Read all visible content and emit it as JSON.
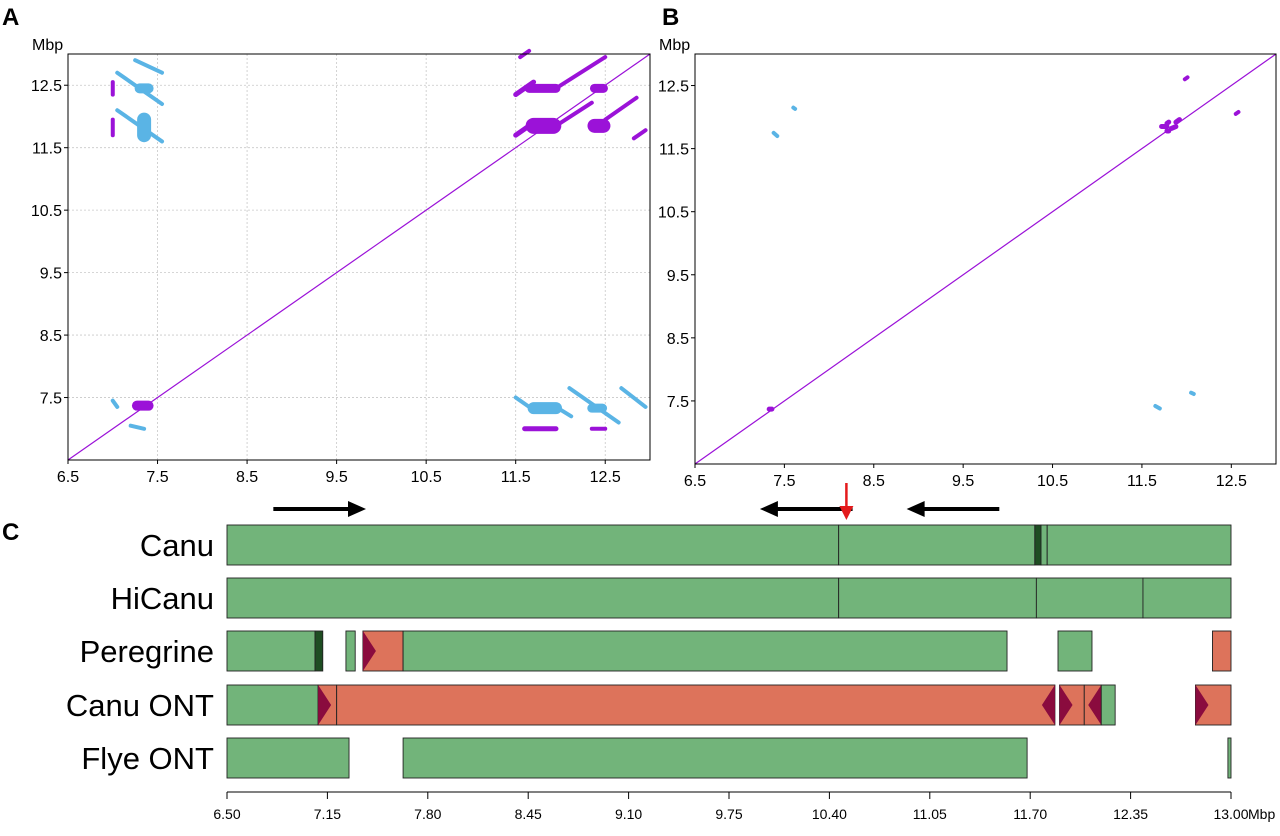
{
  "chart_data": [
    {
      "type": "scatter",
      "panel": "A",
      "ylabel": "Mbp",
      "xlim": [
        6.5,
        13.0
      ],
      "ylim": [
        6.5,
        13.0
      ],
      "xticks": [
        "6.5",
        "7.5",
        "8.5",
        "9.5",
        "10.5",
        "11.5",
        "12.5"
      ],
      "yticks": [
        "7.5",
        "8.5",
        "9.5",
        "10.5",
        "11.5",
        "12.5"
      ],
      "grid": true,
      "colors": {
        "forward": "#9b12d8",
        "reverse": "#5ab4e5"
      },
      "segments": [
        {
          "dir": "forward",
          "x1": 6.5,
          "y1": 6.5,
          "x2": 13.0,
          "y2": 13.0,
          "w": 1.2
        },
        {
          "dir": "forward",
          "x1": 7.27,
          "y1": 7.37,
          "x2": 7.4,
          "y2": 7.37,
          "w": 10
        },
        {
          "dir": "forward",
          "x1": 11.7,
          "y1": 11.85,
          "x2": 11.92,
          "y2": 11.85,
          "w": 16
        },
        {
          "dir": "forward",
          "x1": 11.65,
          "y1": 12.45,
          "x2": 11.95,
          "y2": 12.45,
          "w": 9
        },
        {
          "dir": "forward",
          "x1": 12.38,
          "y1": 12.45,
          "x2": 12.48,
          "y2": 12.45,
          "w": 9
        },
        {
          "dir": "forward",
          "x1": 12.38,
          "y1": 11.85,
          "x2": 12.48,
          "y2": 11.85,
          "w": 14
        },
        {
          "dir": "forward",
          "x1": 11.5,
          "y1": 12.35,
          "x2": 11.7,
          "y2": 12.55,
          "w": 5
        },
        {
          "dir": "forward",
          "x1": 11.95,
          "y1": 12.45,
          "x2": 12.5,
          "y2": 12.95,
          "w": 4
        },
        {
          "dir": "forward",
          "x1": 11.5,
          "y1": 11.7,
          "x2": 11.65,
          "y2": 11.85,
          "w": 5
        },
        {
          "dir": "forward",
          "x1": 11.95,
          "y1": 11.85,
          "x2": 12.35,
          "y2": 12.22,
          "w": 4
        },
        {
          "dir": "forward",
          "x1": 12.5,
          "y1": 11.95,
          "x2": 12.85,
          "y2": 12.3,
          "w": 4
        },
        {
          "dir": "forward",
          "x1": 12.82,
          "y1": 11.65,
          "x2": 12.95,
          "y2": 11.78,
          "w": 4
        },
        {
          "dir": "forward",
          "x1": 11.55,
          "y1": 12.95,
          "x2": 11.65,
          "y2": 13.05,
          "w": 4
        },
        {
          "dir": "forward",
          "x1": 7.0,
          "y1": 12.35,
          "x2": 7.0,
          "y2": 12.55,
          "w": 4
        },
        {
          "dir": "forward",
          "x1": 7.0,
          "y1": 11.7,
          "x2": 7.0,
          "y2": 11.95,
          "w": 4
        },
        {
          "dir": "forward",
          "x1": 11.6,
          "y1": 7.0,
          "x2": 11.95,
          "y2": 7.0,
          "w": 5
        },
        {
          "dir": "forward",
          "x1": 12.35,
          "y1": 7.0,
          "x2": 12.5,
          "y2": 7.0,
          "w": 4
        },
        {
          "dir": "reverse",
          "x1": 7.25,
          "y1": 12.9,
          "x2": 7.55,
          "y2": 12.7,
          "w": 4
        },
        {
          "dir": "reverse",
          "x1": 7.05,
          "y1": 12.7,
          "x2": 7.55,
          "y2": 12.2,
          "w": 4
        },
        {
          "dir": "reverse",
          "x1": 7.05,
          "y1": 12.1,
          "x2": 7.55,
          "y2": 11.6,
          "w": 4
        },
        {
          "dir": "reverse",
          "x1": 7.3,
          "y1": 12.45,
          "x2": 7.4,
          "y2": 12.45,
          "w": 10
        },
        {
          "dir": "reverse",
          "x1": 7.35,
          "y1": 11.7,
          "x2": 7.35,
          "y2": 11.95,
          "w": 14
        },
        {
          "dir": "reverse",
          "x1": 11.5,
          "y1": 7.5,
          "x2": 11.7,
          "y2": 7.3,
          "w": 4
        },
        {
          "dir": "reverse",
          "x1": 11.7,
          "y1": 7.33,
          "x2": 11.95,
          "y2": 7.33,
          "w": 12
        },
        {
          "dir": "reverse",
          "x1": 11.95,
          "y1": 7.35,
          "x2": 12.12,
          "y2": 7.2,
          "w": 4
        },
        {
          "dir": "reverse",
          "x1": 12.1,
          "y1": 7.65,
          "x2": 12.65,
          "y2": 7.1,
          "w": 4
        },
        {
          "dir": "reverse",
          "x1": 12.35,
          "y1": 7.33,
          "x2": 12.47,
          "y2": 7.33,
          "w": 9
        },
        {
          "dir": "reverse",
          "x1": 12.68,
          "y1": 7.65,
          "x2": 12.95,
          "y2": 7.35,
          "w": 4
        },
        {
          "dir": "reverse",
          "x1": 7.0,
          "y1": 7.45,
          "x2": 7.05,
          "y2": 7.35,
          "w": 4
        },
        {
          "dir": "reverse",
          "x1": 7.2,
          "y1": 7.05,
          "x2": 7.35,
          "y2": 7.0,
          "w": 4
        }
      ]
    },
    {
      "type": "scatter",
      "panel": "B",
      "ylabel": "Mbp",
      "xlim": [
        6.5,
        13.0
      ],
      "ylim": [
        6.5,
        13.0
      ],
      "xticks": [
        "6.5",
        "7.5",
        "8.5",
        "9.5",
        "10.5",
        "11.5",
        "12.5"
      ],
      "yticks": [
        "7.5",
        "8.5",
        "9.5",
        "10.5",
        "11.5",
        "12.5"
      ],
      "grid": false,
      "colors": {
        "forward": "#9b12d8",
        "reverse": "#5ab4e5"
      },
      "segments": [
        {
          "dir": "forward",
          "x1": 6.5,
          "y1": 6.5,
          "x2": 13.0,
          "y2": 13.0,
          "w": 1.2
        },
        {
          "dir": "forward",
          "x1": 7.33,
          "y1": 7.37,
          "x2": 7.36,
          "y2": 7.37,
          "w": 5
        },
        {
          "dir": "forward",
          "x1": 11.72,
          "y1": 11.85,
          "x2": 11.78,
          "y2": 11.85,
          "w": 5
        },
        {
          "dir": "forward",
          "x1": 11.78,
          "y1": 11.9,
          "x2": 11.8,
          "y2": 11.92,
          "w": 5
        },
        {
          "dir": "forward",
          "x1": 11.78,
          "y1": 11.78,
          "x2": 11.8,
          "y2": 11.78,
          "w": 5
        },
        {
          "dir": "forward",
          "x1": 11.83,
          "y1": 11.82,
          "x2": 11.88,
          "y2": 11.85,
          "w": 5
        },
        {
          "dir": "forward",
          "x1": 11.88,
          "y1": 11.92,
          "x2": 11.92,
          "y2": 11.96,
          "w": 5
        },
        {
          "dir": "forward",
          "x1": 11.98,
          "y1": 12.6,
          "x2": 12.01,
          "y2": 12.63,
          "w": 4
        },
        {
          "dir": "forward",
          "x1": 12.55,
          "y1": 12.05,
          "x2": 12.58,
          "y2": 12.08,
          "w": 4
        },
        {
          "dir": "reverse",
          "x1": 7.38,
          "y1": 11.75,
          "x2": 7.42,
          "y2": 11.7,
          "w": 4
        },
        {
          "dir": "reverse",
          "x1": 7.6,
          "y1": 12.15,
          "x2": 7.62,
          "y2": 12.13,
          "w": 4
        },
        {
          "dir": "reverse",
          "x1": 11.65,
          "y1": 7.42,
          "x2": 11.7,
          "y2": 7.38,
          "w": 4
        },
        {
          "dir": "reverse",
          "x1": 12.05,
          "y1": 7.63,
          "x2": 12.08,
          "y2": 7.61,
          "w": 4
        }
      ]
    },
    {
      "type": "bar",
      "panel": "C",
      "xlabel": "Mbp",
      "xlim": [
        6.5,
        13.0
      ],
      "xticks": [
        "6.50",
        "7.15",
        "7.80",
        "8.45",
        "9.10",
        "9.75",
        "10.40",
        "11.05",
        "11.70",
        "12.35",
        "13.00"
      ],
      "colors": {
        "correct": "#72b47a",
        "inverted": "#dd735b",
        "marker": "#1e4d22",
        "arrowhead": "#8a0b3e",
        "red_arrow": "#e41a1c"
      },
      "direction_arrows": [
        {
          "from": 6.8,
          "to": 7.4
        },
        {
          "from": 10.55,
          "to": 9.95
        },
        {
          "from": 11.5,
          "to": 10.9
        }
      ],
      "red_arrow_at": 10.4,
      "tracks": [
        {
          "name": "Canu",
          "segments": [
            {
              "start": 6.5,
              "end": 10.46,
              "color": "correct"
            },
            {
              "start": 10.46,
              "end": 11.73,
              "color": "correct"
            },
            {
              "start": 11.73,
              "end": 11.77,
              "color": "marker"
            },
            {
              "start": 11.77,
              "end": 11.81,
              "color": "correct"
            },
            {
              "start": 11.81,
              "end": 13.0,
              "color": "correct"
            }
          ]
        },
        {
          "name": "HiCanu",
          "segments": [
            {
              "start": 6.5,
              "end": 10.46,
              "color": "correct"
            },
            {
              "start": 10.46,
              "end": 11.74,
              "color": "correct"
            },
            {
              "start": 11.74,
              "end": 12.43,
              "color": "correct"
            },
            {
              "start": 12.43,
              "end": 13.0,
              "color": "correct"
            }
          ]
        },
        {
          "name": "Peregrine",
          "segments": [
            {
              "start": 6.5,
              "end": 7.07,
              "color": "correct"
            },
            {
              "start": 7.07,
              "end": 7.12,
              "color": "marker"
            },
            {
              "start": 7.27,
              "end": 7.33,
              "color": "correct"
            },
            {
              "start": 7.38,
              "end": 7.64,
              "color": "inverted",
              "head": "left"
            },
            {
              "start": 7.64,
              "end": 11.55,
              "color": "correct"
            },
            {
              "start": 11.88,
              "end": 12.1,
              "color": "correct"
            },
            {
              "start": 12.88,
              "end": 13.0,
              "color": "inverted"
            }
          ]
        },
        {
          "name": "Canu ONT",
          "segments": [
            {
              "start": 6.5,
              "end": 7.09,
              "color": "correct"
            },
            {
              "start": 7.09,
              "end": 7.21,
              "color": "inverted",
              "head": "left"
            },
            {
              "start": 7.21,
              "end": 11.86,
              "color": "inverted",
              "head": "right"
            },
            {
              "start": 11.89,
              "end": 12.05,
              "color": "inverted",
              "head": "left"
            },
            {
              "start": 12.05,
              "end": 12.16,
              "color": "inverted",
              "head": "right"
            },
            {
              "start": 12.16,
              "end": 12.25,
              "color": "correct"
            },
            {
              "start": 12.77,
              "end": 13.0,
              "color": "inverted",
              "head": "left"
            }
          ]
        },
        {
          "name": "Flye ONT",
          "segments": [
            {
              "start": 6.5,
              "end": 7.29,
              "color": "correct"
            },
            {
              "start": 7.64,
              "end": 11.68,
              "color": "correct"
            },
            {
              "start": 12.98,
              "end": 13.0,
              "color": "correct"
            }
          ]
        }
      ]
    }
  ],
  "panel_labels": {
    "a": "A",
    "b": "B",
    "c": "C"
  },
  "unit_label": "Mbp"
}
